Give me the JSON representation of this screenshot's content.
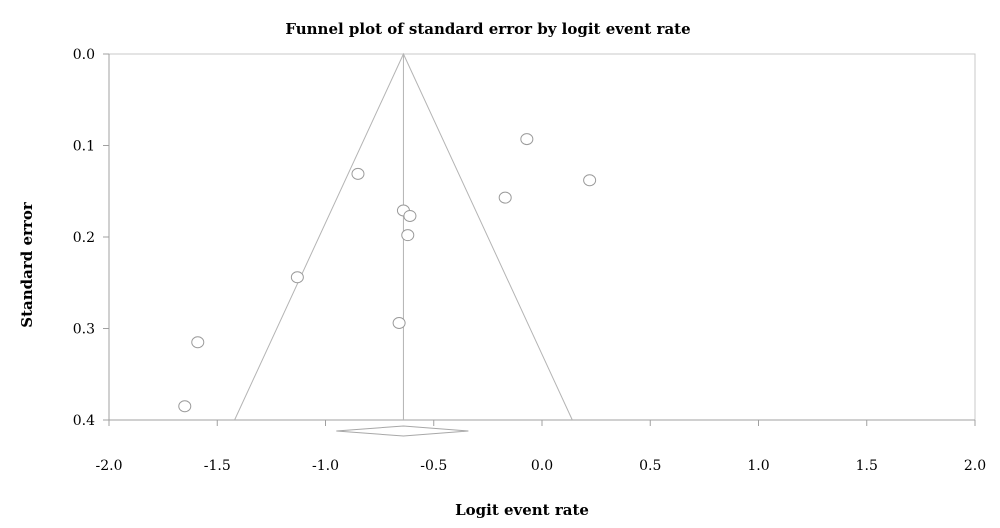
{
  "chart_data": {
    "type": "scatter",
    "title": "Funnel plot of standard error by logit event rate",
    "xlabel": "Logit event rate",
    "ylabel": "Standard error",
    "xlim": [
      -2.0,
      2.0
    ],
    "ylim": [
      0.0,
      0.4
    ],
    "y_inverted": true,
    "x_ticks": [
      "-2.0",
      "-1.5",
      "-1.0",
      "-0.5",
      "0.0",
      "0.5",
      "1.0",
      "1.5",
      "2.0"
    ],
    "y_ticks": [
      "0.0",
      "0.1",
      "0.2",
      "0.3",
      "0.4"
    ],
    "grid": false,
    "pooled_estimate": -0.64,
    "pooled_ci": [
      -0.95,
      -0.34
    ],
    "funnel": {
      "apex": [
        -0.64,
        0.0
      ],
      "bottom_left": [
        -1.42,
        0.4
      ],
      "bottom_right": [
        0.14,
        0.4
      ]
    },
    "points": [
      {
        "x": -0.07,
        "y": 0.093
      },
      {
        "x": 0.22,
        "y": 0.138
      },
      {
        "x": -0.85,
        "y": 0.131
      },
      {
        "x": -0.17,
        "y": 0.157
      },
      {
        "x": -0.64,
        "y": 0.171
      },
      {
        "x": -0.61,
        "y": 0.177
      },
      {
        "x": -0.62,
        "y": 0.198
      },
      {
        "x": -1.13,
        "y": 0.244
      },
      {
        "x": -0.66,
        "y": 0.294
      },
      {
        "x": -1.59,
        "y": 0.315
      },
      {
        "x": -1.65,
        "y": 0.385
      }
    ]
  }
}
